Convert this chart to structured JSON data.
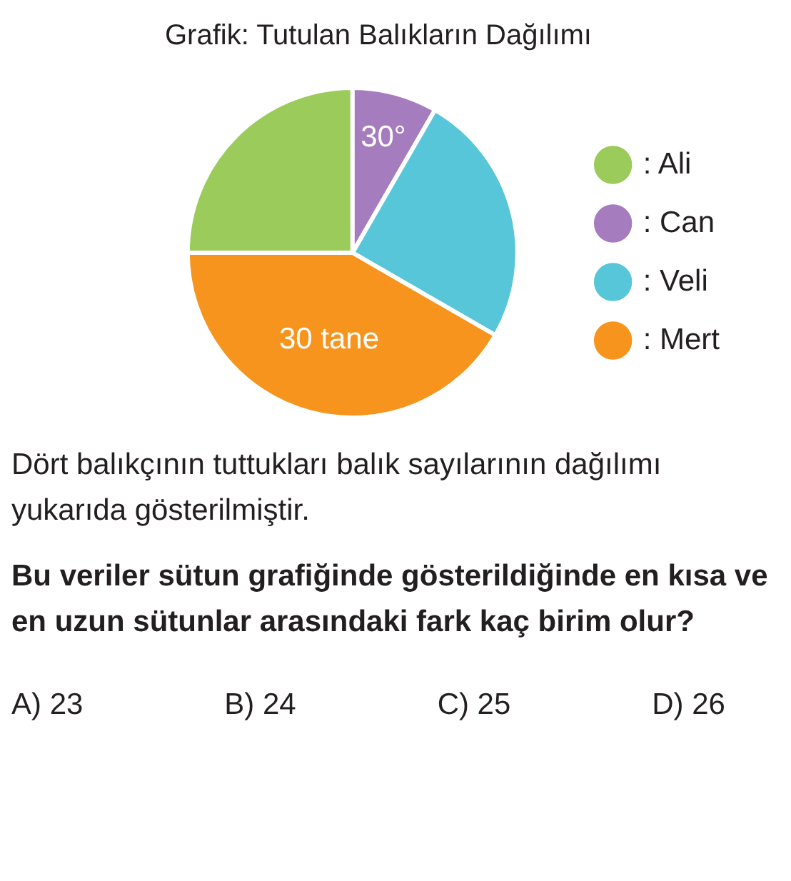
{
  "chart_data": {
    "type": "pie",
    "title": "Grafik: Tutulan Balıkların Dağılımı",
    "categories": [
      ": Ali",
      ": Can",
      ": Veli",
      ": Mert"
    ],
    "values": [
      18,
      6,
      18,
      30
    ],
    "colors": [
      "#9bcb5b",
      "#a57cbe",
      "#57c6d9",
      "#f7941d"
    ],
    "value_labels": [
      null,
      null,
      null,
      "30 tane"
    ],
    "legend": "right",
    "annotations": [
      {
        "text": "30°",
        "x": ": Can"
      },
      "Dört balıkçının tuttukları balık sayılarının dağılımı yukarıda gösterilmiştir.",
      "Bu veriler sütun grafiğinde gösterildiğinde en kısa ve en uzun sütunlar arasındaki fark kaç birim olur?",
      "A) 23",
      "B) 24",
      "C) 25",
      "D) 26"
    ]
  }
}
